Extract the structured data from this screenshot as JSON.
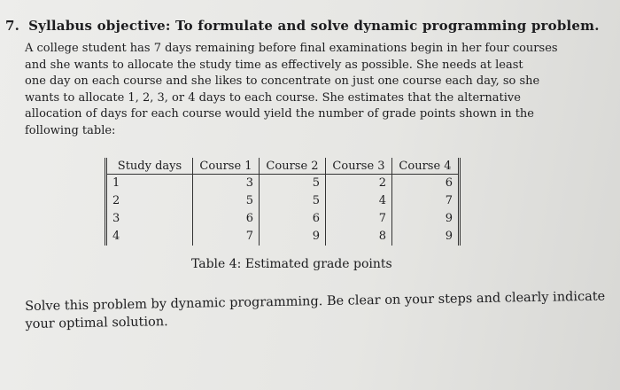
{
  "question": {
    "number": "7.",
    "objective": "Syllabus objective: To formulate and solve dynamic programming problem.",
    "paragraph_lines": [
      "A college student has 7 days remaining before final examinations begin in her four courses",
      "and she wants to allocate the study time as effectively as possible. She needs at least",
      "one day on each course and she likes to concentrate on just one course each day, so she",
      "wants to allocate 1, 2, 3, or 4 days to each course. She estimates that the alternative",
      "allocation of days for each course would yield the number of grade points shown in the",
      "following table:"
    ]
  },
  "table": {
    "headers": [
      "Study days",
      "Course 1",
      "Course 2",
      "Course 3",
      "Course 4"
    ],
    "rows": [
      [
        "1",
        "3",
        "5",
        "2",
        "6"
      ],
      [
        "2",
        "5",
        "5",
        "4",
        "7"
      ],
      [
        "3",
        "6",
        "6",
        "7",
        "9"
      ],
      [
        "4",
        "7",
        "9",
        "8",
        "9"
      ]
    ],
    "caption": "Table 4: Estimated grade points"
  },
  "instruction_lines": [
    "Solve this problem by dynamic programming. Be clear on your steps and clearly indicate",
    "your optimal solution."
  ]
}
